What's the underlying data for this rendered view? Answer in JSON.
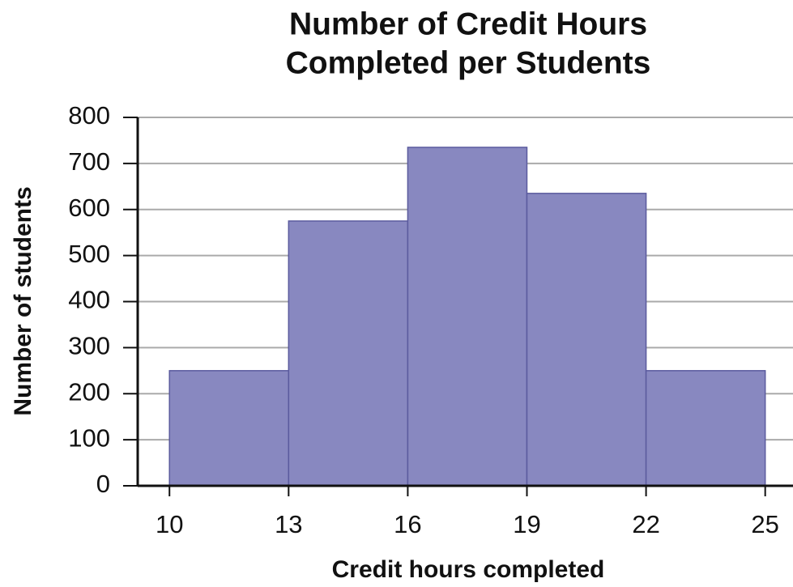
{
  "chart_data": {
    "type": "histogram",
    "title": [
      "Number of Credit Hours",
      "Completed per Students"
    ],
    "xlabel": "Credit hours completed",
    "ylabel": "Number of students",
    "bins": [
      10,
      13,
      16,
      19,
      22,
      25
    ],
    "values": [
      250,
      575,
      735,
      635,
      250
    ],
    "color": "#8888c0",
    "xlim": [
      9.2,
      25.7
    ],
    "xticks": [
      10,
      13,
      16,
      19,
      22,
      25
    ],
    "ylim": [
      0,
      800
    ],
    "yticks": [
      0,
      100,
      200,
      300,
      400,
      500,
      600,
      700,
      800
    ],
    "grid": true
  }
}
